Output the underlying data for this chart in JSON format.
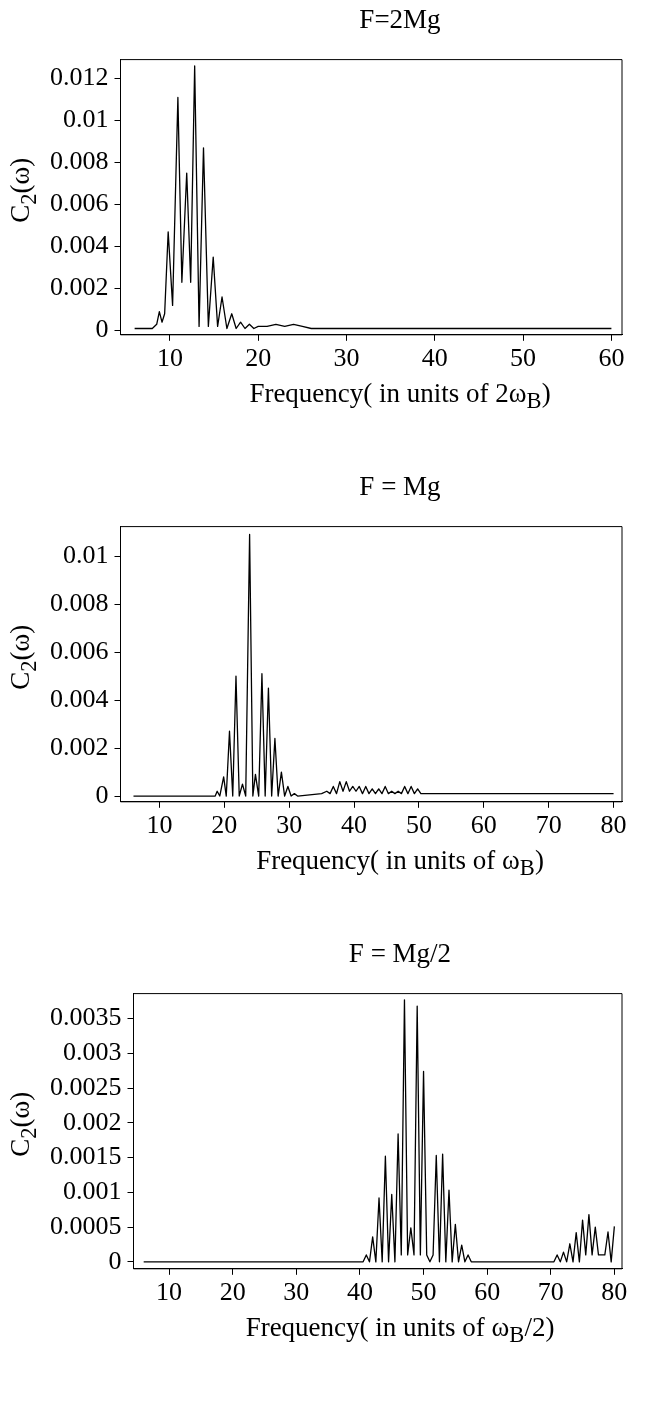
{
  "chart_data": [
    {
      "type": "line",
      "title": "F=2Mg",
      "xlabel": "Frequency( in units of 2ω$_{B}$)",
      "ylabel": "C$_{2}$(ω)",
      "color": "#000000",
      "marker": "none",
      "legend": false,
      "x": [
        6,
        7,
        8,
        8.5,
        8.8,
        9.1,
        9.4,
        9.8,
        10.3,
        10.9,
        11.35,
        11.9,
        12.35,
        12.8,
        13.3,
        13.8,
        14.35,
        14.9,
        15.4,
        15.9,
        16.45,
        17.0,
        17.5,
        18.0,
        18.5,
        19.0,
        19.5,
        20.0,
        21,
        22,
        23,
        24,
        25,
        26,
        28,
        30,
        35,
        40,
        45,
        50,
        55,
        60
      ],
      "values": [
        0.0001,
        0.0001,
        0.0001,
        0.0003,
        0.0009,
        0.0004,
        0.0008,
        0.0047,
        0.0012,
        0.0111,
        0.0023,
        0.0075,
        0.0023,
        0.0126,
        0.0002,
        0.0087,
        0.0002,
        0.0035,
        0.0002,
        0.0016,
        0.0001,
        0.0008,
        0.0001,
        0.0004,
        0.0001,
        0.0003,
        0.0001,
        0.0002,
        0.0002,
        0.0003,
        0.0002,
        0.0003,
        0.0002,
        0.0001,
        0.0001,
        0.0001,
        0.0001,
        0.0001,
        0.0001,
        0.0001,
        0.0001,
        0.0001
      ],
      "xlim": [
        4.4,
        61.2
      ],
      "xticks": [
        10,
        20,
        30,
        40,
        50,
        60
      ],
      "ylim": [
        -0.0002,
        0.0129
      ],
      "yticks": [
        0,
        0.002,
        0.004,
        0.006,
        0.008,
        0.01,
        0.012
      ]
    },
    {
      "type": "line",
      "title": "F = Mg",
      "xlabel": "Frequency( in units of ω$_{B}$)",
      "ylabel": "C$_{2}$(ω)",
      "color": "#000000",
      "marker": "none",
      "legend": false,
      "x": [
        6,
        18,
        18.6,
        18.9,
        19.3,
        19.9,
        20.3,
        20.8,
        21.3,
        21.8,
        22.3,
        22.8,
        23.3,
        23.9,
        24.4,
        24.8,
        25.3,
        25.8,
        26.3,
        26.8,
        27.3,
        27.8,
        28.3,
        28.8,
        29.3,
        29.8,
        30.3,
        30.8,
        31.3,
        35,
        35.8,
        36.3,
        36.8,
        37.3,
        37.8,
        38.3,
        38.8,
        39.3,
        39.8,
        40.3,
        40.8,
        41.3,
        41.8,
        42.3,
        42.8,
        43.3,
        43.8,
        44.3,
        44.8,
        45.3,
        45.8,
        46.3,
        46.8,
        47.3,
        47.8,
        48.3,
        48.8,
        49.3,
        49.8,
        50.3,
        50.8,
        52,
        60,
        70,
        80
      ],
      "values": [
        0,
        0,
        0,
        0.0002,
        0,
        0.0008,
        0,
        0.0027,
        0,
        0.005,
        0,
        0.0005,
        0,
        0.0109,
        0,
        0.0009,
        0,
        0.0051,
        0,
        0.0045,
        0,
        0.0024,
        0,
        0.001,
        0,
        0.0004,
        0,
        0.0001,
        0,
        0.0001,
        0.0002,
        0.0001,
        0.0004,
        0.0001,
        0.0006,
        0.0002,
        0.0006,
        0.0002,
        0.0004,
        0.0002,
        0.0004,
        0.0001,
        0.0004,
        0.0001,
        0.0003,
        0.0001,
        0.0003,
        0.0001,
        0.0004,
        0.0001,
        0.0002,
        0.0001,
        0.0002,
        0.0001,
        0.0004,
        0.0001,
        0.0004,
        0.0001,
        0.0003,
        0.0001,
        0.0001,
        0.0001,
        0.0001,
        0.0001,
        0.0001
      ],
      "xlim": [
        4,
        81.3
      ],
      "xticks": [
        10,
        20,
        30,
        40,
        50,
        60,
        70,
        80
      ],
      "ylim": [
        -0.00024,
        0.01123
      ],
      "yticks": [
        0,
        0.002,
        0.004,
        0.006,
        0.008,
        0.01
      ]
    },
    {
      "type": "line",
      "title": "F = Mg/2",
      "xlabel": "Frequency( in units of ω$_{B}$/2)",
      "ylabel": "C$_{2}$(ω)",
      "color": "#000000",
      "marker": "none",
      "legend": false,
      "x": [
        6,
        39,
        40,
        40.5,
        41,
        41.5,
        42,
        42.5,
        43,
        43.5,
        44,
        44.5,
        45,
        45.5,
        46,
        46.5,
        47,
        47.5,
        48,
        48.5,
        49,
        49.5,
        50,
        50.5,
        51,
        51.5,
        52,
        52.5,
        53,
        53.5,
        54,
        54.5,
        55,
        55.5,
        56,
        56.5,
        57,
        57.5,
        58,
        59,
        65,
        69,
        70,
        70.5,
        71,
        71.5,
        72,
        72.5,
        73,
        73.5,
        74,
        74.5,
        75,
        75.5,
        76,
        76.5,
        77,
        77.5,
        78,
        78.5,
        79,
        79.5,
        80
      ],
      "values": [
        0,
        0,
        0,
        0,
        0.0001,
        0,
        0.00036,
        0,
        0.00092,
        0,
        0.00152,
        0,
        0.00097,
        0,
        0.00184,
        0.0001,
        0.00377,
        0.0001,
        0.00049,
        0.0001,
        0.00368,
        0.0001,
        0.00274,
        0.0001,
        0,
        0.0001,
        0.00153,
        0,
        0.00155,
        0,
        0.00103,
        0,
        0.00054,
        0,
        0.00024,
        0,
        0.0001,
        0,
        0,
        0,
        0,
        0,
        0,
        0,
        0.0001,
        0,
        0.00014,
        0,
        0.00026,
        0,
        0.00042,
        0,
        0.0006,
        0.0001,
        0.00068,
        0.0001,
        0.0005,
        0.0001,
        0.0001,
        0.0001,
        0.00043,
        0,
        0.00051
      ],
      "xlim": [
        4.4,
        81.2
      ],
      "xticks": [
        10,
        20,
        30,
        40,
        50,
        60,
        70,
        80
      ],
      "ylim": [
        -0.0001,
        0.00386
      ],
      "yticks": [
        0,
        0.0005,
        0.001,
        0.0015,
        0.002,
        0.0025,
        0.003,
        0.0035
      ]
    }
  ]
}
